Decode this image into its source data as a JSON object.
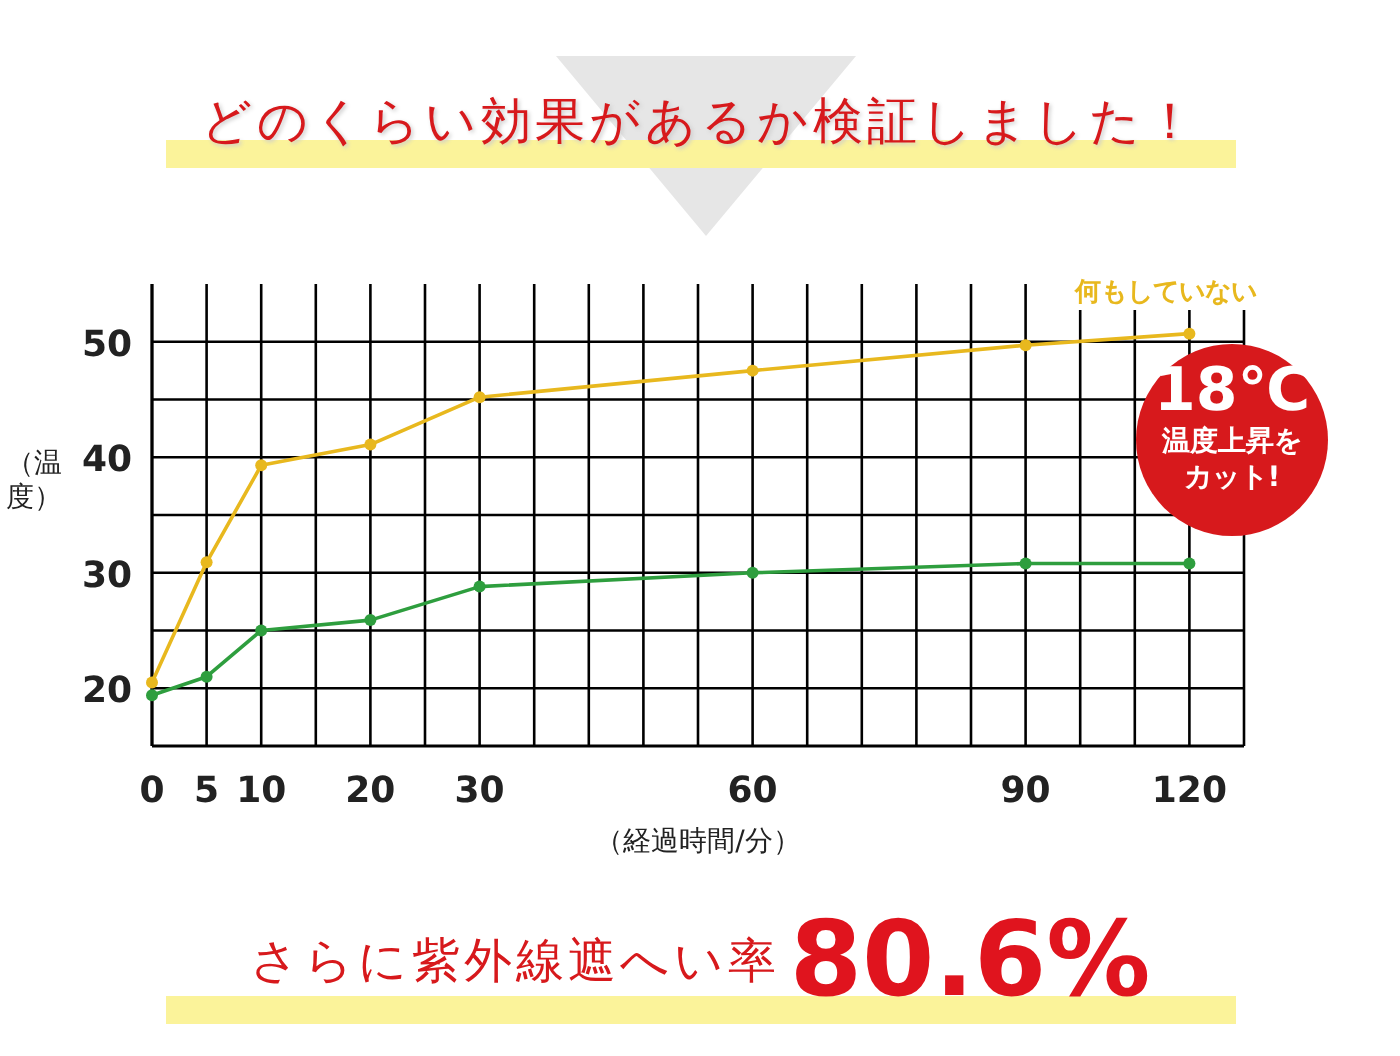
{
  "chart_data": {
    "type": "line",
    "title": "どのくらい効果があるか検証しました！",
    "xlabel": "（経過時間/分）",
    "ylabel": "（温度）",
    "categories": [
      "0",
      "5",
      "10",
      null,
      "20",
      null,
      "30",
      null,
      null,
      null,
      null,
      "60",
      null,
      null,
      null,
      null,
      "90",
      null,
      null,
      "120",
      null
    ],
    "series": [
      {
        "name": "何もしていない",
        "color": "#e8b81e",
        "values": [
          20.5,
          30.9,
          39.3,
          null,
          41.1,
          null,
          45.2,
          null,
          null,
          null,
          null,
          47.5,
          null,
          null,
          null,
          null,
          49.7,
          null,
          null,
          50.7,
          null
        ]
      },
      {
        "color": "#2e9e3e",
        "values": [
          19.4,
          21.0,
          25.0,
          null,
          25.9,
          null,
          28.8,
          null,
          null,
          null,
          null,
          30.0,
          null,
          null,
          null,
          null,
          30.8,
          null,
          null,
          30.8,
          null
        ]
      }
    ],
    "ylim": [
      15,
      55
    ],
    "yticks": [
      20,
      {
        "value": 25,
        "label": null
      },
      30,
      {
        "value": 35,
        "label": null
      },
      40,
      {
        "value": 45,
        "label": null
      },
      50
    ],
    "grid": true,
    "legend": false,
    "marker": "circle",
    "line_style": "solid",
    "annotations": [
      "18℃",
      "温度上昇をカット!",
      "さらに紫外線遮へい率",
      "80.6%"
    ]
  }
}
